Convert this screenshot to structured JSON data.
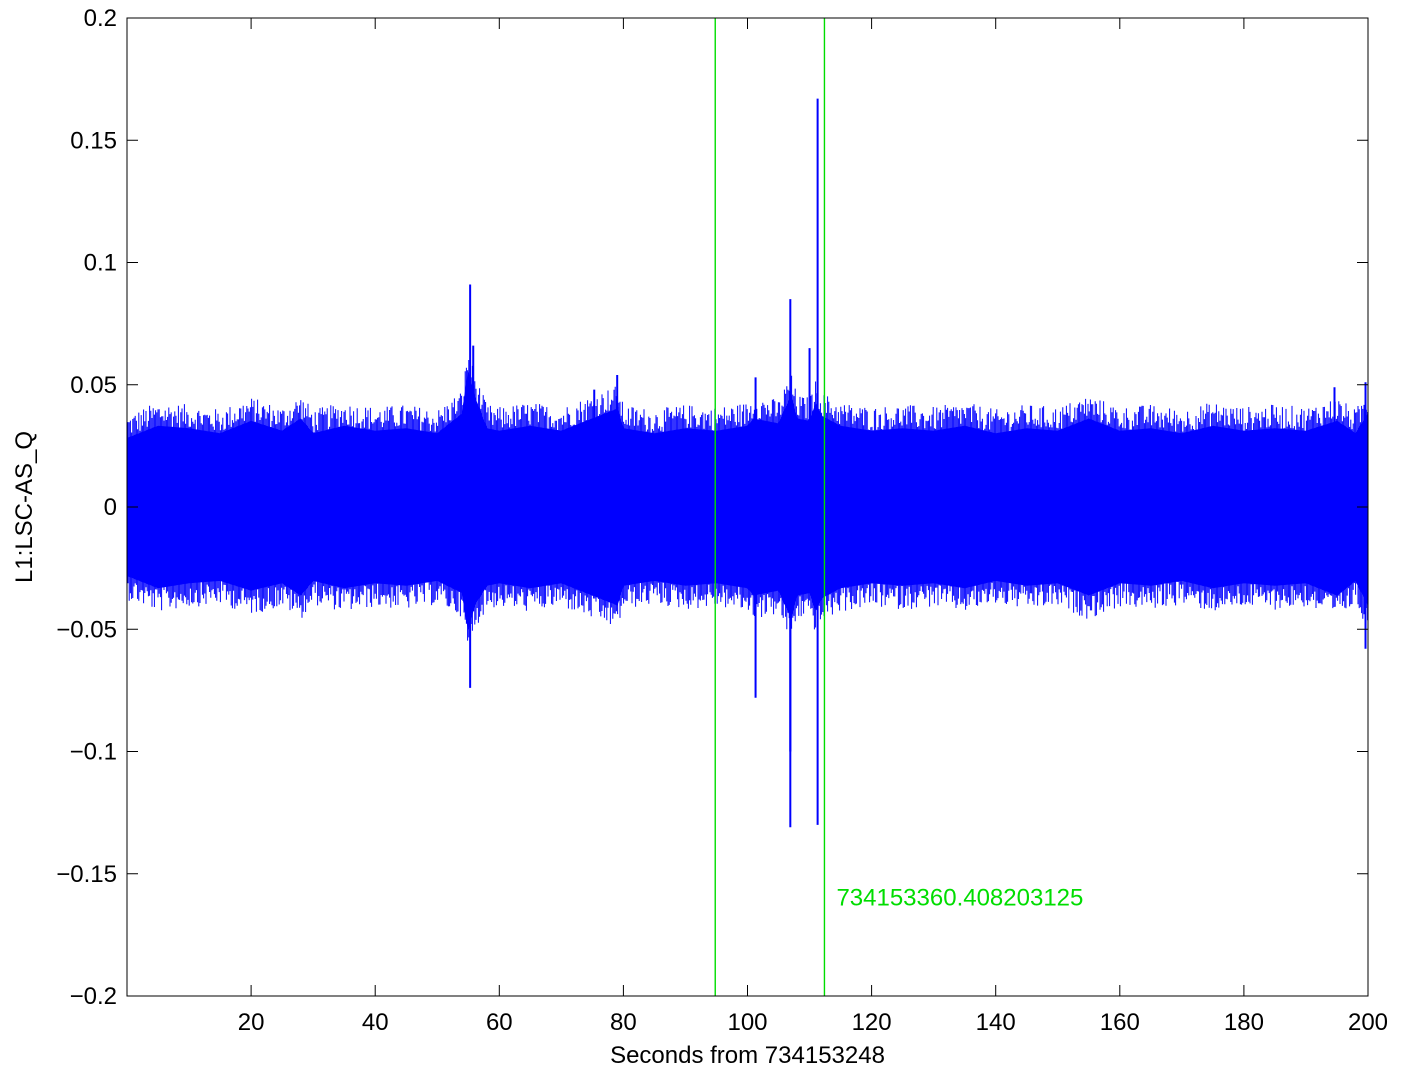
{
  "chart_data": {
    "type": "line",
    "title": "",
    "xlabel": "Seconds from 734153248",
    "ylabel": "L1:LSC-AS_Q",
    "xlim": [
      0,
      200
    ],
    "ylim": [
      -0.2,
      0.2
    ],
    "xticks": [
      20,
      40,
      60,
      80,
      100,
      120,
      140,
      160,
      180,
      200
    ],
    "yticks": [
      -0.2,
      -0.15,
      -0.1,
      -0.05,
      0,
      0.05,
      0.1,
      0.15,
      0.2
    ],
    "xtick_labels": [
      "20",
      "40",
      "60",
      "80",
      "100",
      "120",
      "140",
      "160",
      "180",
      "200"
    ],
    "ytick_labels": [
      "−0.2",
      "−0.15",
      "−0.1",
      "−0.05",
      "0",
      "0.05",
      "0.1",
      "0.15",
      "0.2"
    ],
    "grid": false,
    "series_color": "#0000ff",
    "envelope": {
      "x": [
        0,
        5,
        10,
        15,
        20,
        25,
        28,
        30,
        35,
        40,
        45,
        50,
        54,
        55,
        56,
        58,
        60,
        65,
        70,
        75,
        79,
        80,
        85,
        90,
        95,
        100,
        101,
        105,
        107,
        108,
        110,
        111,
        112,
        115,
        120,
        125,
        130,
        135,
        140,
        145,
        150,
        155,
        160,
        165,
        170,
        175,
        180,
        185,
        190,
        195,
        198,
        200
      ],
      "upper": [
        0.028,
        0.033,
        0.032,
        0.03,
        0.035,
        0.031,
        0.036,
        0.03,
        0.033,
        0.031,
        0.032,
        0.03,
        0.038,
        0.055,
        0.045,
        0.032,
        0.031,
        0.033,
        0.031,
        0.036,
        0.04,
        0.032,
        0.03,
        0.032,
        0.031,
        0.033,
        0.036,
        0.034,
        0.045,
        0.036,
        0.035,
        0.042,
        0.037,
        0.033,
        0.031,
        0.032,
        0.031,
        0.033,
        0.03,
        0.032,
        0.031,
        0.036,
        0.031,
        0.032,
        0.03,
        0.033,
        0.031,
        0.032,
        0.031,
        0.035,
        0.03,
        0.038
      ],
      "lower": [
        -0.028,
        -0.033,
        -0.031,
        -0.03,
        -0.034,
        -0.031,
        -0.036,
        -0.03,
        -0.033,
        -0.031,
        -0.032,
        -0.03,
        -0.035,
        -0.05,
        -0.04,
        -0.032,
        -0.031,
        -0.033,
        -0.031,
        -0.036,
        -0.04,
        -0.032,
        -0.03,
        -0.032,
        -0.031,
        -0.033,
        -0.036,
        -0.034,
        -0.045,
        -0.036,
        -0.035,
        -0.042,
        -0.037,
        -0.033,
        -0.031,
        -0.032,
        -0.031,
        -0.033,
        -0.03,
        -0.032,
        -0.031,
        -0.036,
        -0.031,
        -0.032,
        -0.03,
        -0.033,
        -0.031,
        -0.032,
        -0.031,
        -0.036,
        -0.03,
        -0.04
      ]
    },
    "spikes": [
      {
        "x": 55.3,
        "y": 0.091
      },
      {
        "x": 55.3,
        "y": -0.074
      },
      {
        "x": 55.8,
        "y": 0.066
      },
      {
        "x": 75.3,
        "y": 0.048
      },
      {
        "x": 79.0,
        "y": 0.054
      },
      {
        "x": 101.3,
        "y": 0.053
      },
      {
        "x": 101.3,
        "y": -0.078
      },
      {
        "x": 106.9,
        "y": 0.085
      },
      {
        "x": 106.9,
        "y": -0.131
      },
      {
        "x": 106.9,
        "y": -0.1
      },
      {
        "x": 110.0,
        "y": 0.065
      },
      {
        "x": 111.3,
        "y": 0.167
      },
      {
        "x": 111.3,
        "y": -0.13
      },
      {
        "x": 194.6,
        "y": 0.049
      },
      {
        "x": 199.6,
        "y": 0.051
      },
      {
        "x": 199.6,
        "y": -0.058
      }
    ],
    "markers": [
      {
        "x": 94.8,
        "color": "#00dd00"
      },
      {
        "x": 112.4,
        "color": "#00dd00",
        "label": "734153360.408203125"
      }
    ]
  }
}
